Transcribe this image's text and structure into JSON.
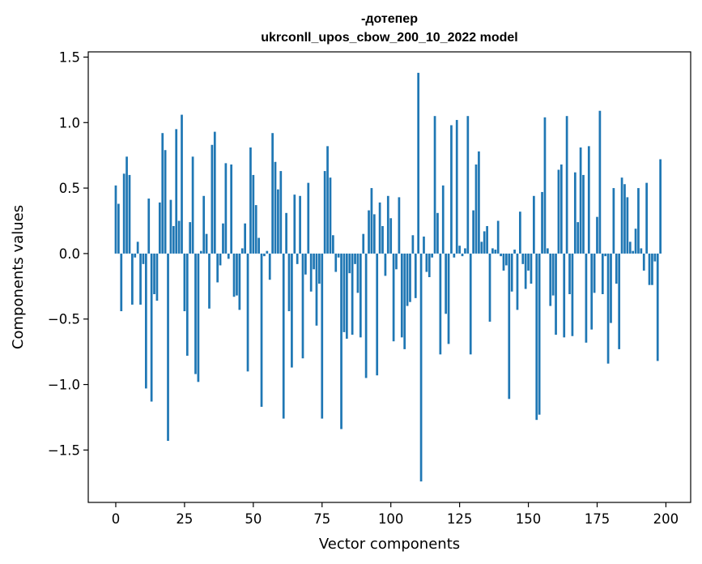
{
  "chart_data": {
    "type": "bar",
    "title_line1": "-дотепер",
    "title_line2": "ukrconll_upos_cbow_200_10_2022 model",
    "xlabel": "Vector components",
    "ylabel": "Components values",
    "xlim": [
      -10,
      209
    ],
    "ylim": [
      -1.9,
      1.54
    ],
    "xticks": [
      0,
      25,
      50,
      75,
      100,
      125,
      150,
      175,
      200
    ],
    "xtick_labels": [
      "0",
      "25",
      "50",
      "75",
      "100",
      "125",
      "150",
      "175",
      "200"
    ],
    "yticks": [
      -1.5,
      -1.0,
      -0.5,
      0.0,
      0.5,
      1.0,
      1.5
    ],
    "ytick_labels": [
      "−1.5",
      "−1.0",
      "−0.5",
      "0.0",
      "0.5",
      "1.0",
      "1.5"
    ],
    "grid": false,
    "color": "#1f77b4",
    "values": [
      0.52,
      0.38,
      -0.44,
      0.61,
      0.74,
      0.6,
      -0.39,
      -0.03,
      0.09,
      -0.39,
      -0.08,
      -1.03,
      0.42,
      -1.13,
      -0.31,
      -0.36,
      0.39,
      0.92,
      0.79,
      -1.43,
      0.41,
      0.21,
      0.95,
      0.25,
      1.06,
      -0.44,
      -0.78,
      0.24,
      0.74,
      -0.92,
      -0.98,
      0.02,
      0.44,
      0.15,
      -0.42,
      0.83,
      0.93,
      -0.22,
      -0.09,
      0.23,
      0.69,
      -0.04,
      0.68,
      -0.33,
      -0.32,
      -0.43,
      0.04,
      0.23,
      -0.9,
      0.81,
      0.6,
      0.37,
      0.12,
      -1.17,
      -0.02,
      0.02,
      -0.2,
      0.92,
      0.7,
      0.49,
      0.63,
      -1.26,
      0.31,
      -0.44,
      -0.87,
      0.45,
      -0.08,
      0.44,
      -0.8,
      -0.16,
      0.54,
      -0.29,
      -0.12,
      -0.55,
      -0.23,
      -1.26,
      0.63,
      0.82,
      0.58,
      0.14,
      -0.14,
      -0.03,
      -1.34,
      -0.6,
      -0.65,
      -0.15,
      -0.62,
      -0.08,
      -0.3,
      -0.64,
      0.15,
      -0.95,
      0.33,
      0.5,
      0.3,
      -0.93,
      0.39,
      0.21,
      -0.17,
      0.44,
      0.27,
      -0.67,
      -0.12,
      0.43,
      -0.64,
      -0.73,
      -0.4,
      -0.37,
      0.14,
      -0.34,
      1.38,
      -1.74,
      0.13,
      -0.14,
      -0.18,
      -0.03,
      1.05,
      0.31,
      -0.77,
      0.52,
      -0.46,
      -0.69,
      0.98,
      -0.03,
      1.02,
      0.06,
      -0.02,
      0.04,
      1.05,
      -0.77,
      0.33,
      0.68,
      0.78,
      0.09,
      0.17,
      0.21,
      -0.52,
      0.04,
      0.03,
      0.25,
      -0.02,
      -0.13,
      -0.09,
      -1.11,
      -0.29,
      0.03,
      -0.43,
      0.32,
      -0.08,
      -0.27,
      -0.13,
      -0.23,
      0.44,
      -1.27,
      -1.23,
      0.47,
      1.04,
      0.04,
      -0.4,
      -0.32,
      -0.62,
      0.64,
      0.68,
      -0.64,
      1.05,
      -0.31,
      -0.63,
      0.62,
      0.24,
      0.81,
      0.6,
      -0.68,
      0.82,
      -0.58,
      -0.3,
      0.28,
      1.09,
      -0.31,
      -0.02,
      -0.84,
      -0.53,
      0.5,
      -0.23,
      -0.73,
      0.58,
      0.53,
      0.43,
      0.09,
      0.02,
      0.19,
      0.5,
      0.04,
      -0.13,
      0.54,
      -0.24,
      -0.24,
      -0.06,
      -0.82,
      0.72
    ]
  }
}
